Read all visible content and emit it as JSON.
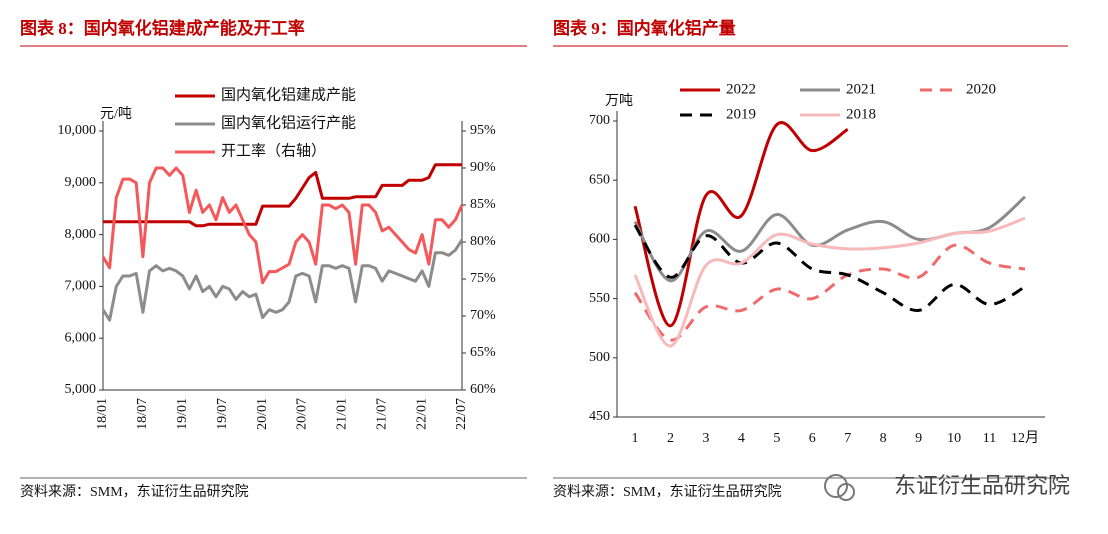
{
  "chart_data": [
    {
      "type": "line",
      "title": "图表 8：国内氧化铝建成产能及开工率",
      "source": "资料来源：SMM，东证衍生品研究院",
      "y_label": "元/吨",
      "categories": [
        "18/01",
        null,
        null,
        null,
        null,
        null,
        "18/07",
        null,
        null,
        null,
        null,
        null,
        "19/01",
        null,
        null,
        null,
        null,
        null,
        "19/07",
        null,
        null,
        null,
        null,
        null,
        "20/01",
        null,
        null,
        null,
        null,
        null,
        "20/07",
        null,
        null,
        null,
        null,
        null,
        "21/01",
        null,
        null,
        null,
        null,
        null,
        "21/07",
        null,
        null,
        null,
        null,
        null,
        "22/01",
        null,
        null,
        null,
        null,
        null,
        "22/07"
      ],
      "ylim": [
        5000,
        10000
      ],
      "yticks": [
        {
          "value": 5000,
          "label": "5,000"
        },
        {
          "value": 6000,
          "label": "6,000"
        },
        {
          "value": 7000,
          "label": "7,000"
        },
        {
          "value": 8000,
          "label": "8,000"
        },
        {
          "value": 9000,
          "label": "9,000"
        },
        {
          "value": 10000,
          "label": "10,000"
        }
      ],
      "y2lim": [
        60,
        95
      ],
      "y2ticks": [
        {
          "value": 60,
          "label": "60%"
        },
        {
          "value": 65,
          "label": "65%"
        },
        {
          "value": 70,
          "label": "70%"
        },
        {
          "value": 75,
          "label": "75%"
        },
        {
          "value": 80,
          "label": "80%"
        },
        {
          "value": 85,
          "label": "85%"
        },
        {
          "value": 90,
          "label": "90%"
        },
        {
          "value": 95,
          "label": "95%"
        }
      ],
      "series": [
        {
          "name": "国内氧化铝建成产能",
          "color": "#c00000",
          "values": [
            8250,
            8250,
            8250,
            8250,
            8250,
            8250,
            8250,
            8250,
            8250,
            8250,
            8250,
            8250,
            8250,
            8250,
            8170,
            8170,
            8200,
            8200,
            8200,
            8200,
            8200,
            8200,
            8200,
            8200,
            8550,
            8550,
            8550,
            8550,
            8550,
            8700,
            8900,
            9100,
            9200,
            8700,
            8700,
            8700,
            8700,
            8700,
            8730,
            8730,
            8730,
            8730,
            8950,
            8950,
            8950,
            8950,
            9050,
            9050,
            9050,
            9100,
            9350,
            9350,
            9350,
            9350,
            9350
          ]
        },
        {
          "name": "国内氧化铝运行产能",
          "color": "#8c8c8c",
          "values": [
            6550,
            6350,
            7000,
            7200,
            7200,
            7250,
            6500,
            7300,
            7400,
            7300,
            7350,
            7300,
            7200,
            6950,
            7200,
            6900,
            7000,
            6800,
            7000,
            6950,
            6750,
            6900,
            6800,
            6850,
            6400,
            6550,
            6500,
            6550,
            6700,
            7200,
            7250,
            7200,
            6700,
            7400,
            7400,
            7350,
            7400,
            7350,
            6700,
            7400,
            7400,
            7350,
            7100,
            7300,
            7250,
            7200,
            7150,
            7100,
            7300,
            7000,
            7650,
            7650,
            7600,
            7700,
            7900
          ]
        },
        {
          "name": "开工率（右轴）",
          "color": "#f4585a",
          "axis": "y2",
          "values": [
            78,
            76.5,
            86,
            88.5,
            88.5,
            88,
            78,
            88,
            90,
            90,
            89,
            90,
            89,
            84,
            87,
            84,
            85,
            83,
            86,
            84,
            85,
            83,
            81,
            80,
            74.5,
            76,
            76,
            76.5,
            77,
            80,
            81,
            80,
            77,
            85,
            85,
            84.5,
            85,
            84,
            77,
            85,
            85,
            84,
            81.5,
            82,
            81,
            80,
            79,
            78.5,
            81,
            77,
            83,
            83,
            82,
            83,
            85
          ]
        }
      ]
    },
    {
      "type": "line",
      "smooth": true,
      "title": "图表 9：国内氧化铝产量",
      "source": "资料来源：SMM，东证衍生品研究院",
      "y_label": "万吨",
      "categories": [
        "1",
        "2",
        "3",
        "4",
        "5",
        "6",
        "7",
        "8",
        "9",
        "10",
        "11",
        "12月"
      ],
      "ylim": [
        450,
        700
      ],
      "yticks": [
        450,
        500,
        550,
        600,
        650,
        700
      ],
      "series": [
        {
          "name": "2022",
          "color": "#c00000",
          "values": [
            628,
            527,
            637,
            620,
            697,
            675,
            693,
            null,
            null,
            null,
            null,
            null
          ]
        },
        {
          "name": "2021",
          "color": "#8c8c8c",
          "values": [
            615,
            565,
            607,
            590,
            621,
            595,
            608,
            615,
            600,
            605,
            610,
            636
          ]
        },
        {
          "name": "2020",
          "color": "#f06a6a",
          "dashed": true,
          "values": [
            555,
            515,
            543,
            540,
            558,
            550,
            570,
            575,
            568,
            595,
            580,
            575
          ]
        },
        {
          "name": "2019",
          "color": "#000000",
          "dashed": true,
          "values": [
            612,
            568,
            603,
            580,
            597,
            575,
            570,
            555,
            540,
            562,
            545,
            560
          ]
        },
        {
          "name": "2018",
          "color": "#f7b9b9",
          "values": [
            570,
            510,
            578,
            580,
            604,
            596,
            592,
            593,
            597,
            605,
            607,
            618
          ]
        }
      ]
    }
  ],
  "watermark": "东证衍生品研究院"
}
